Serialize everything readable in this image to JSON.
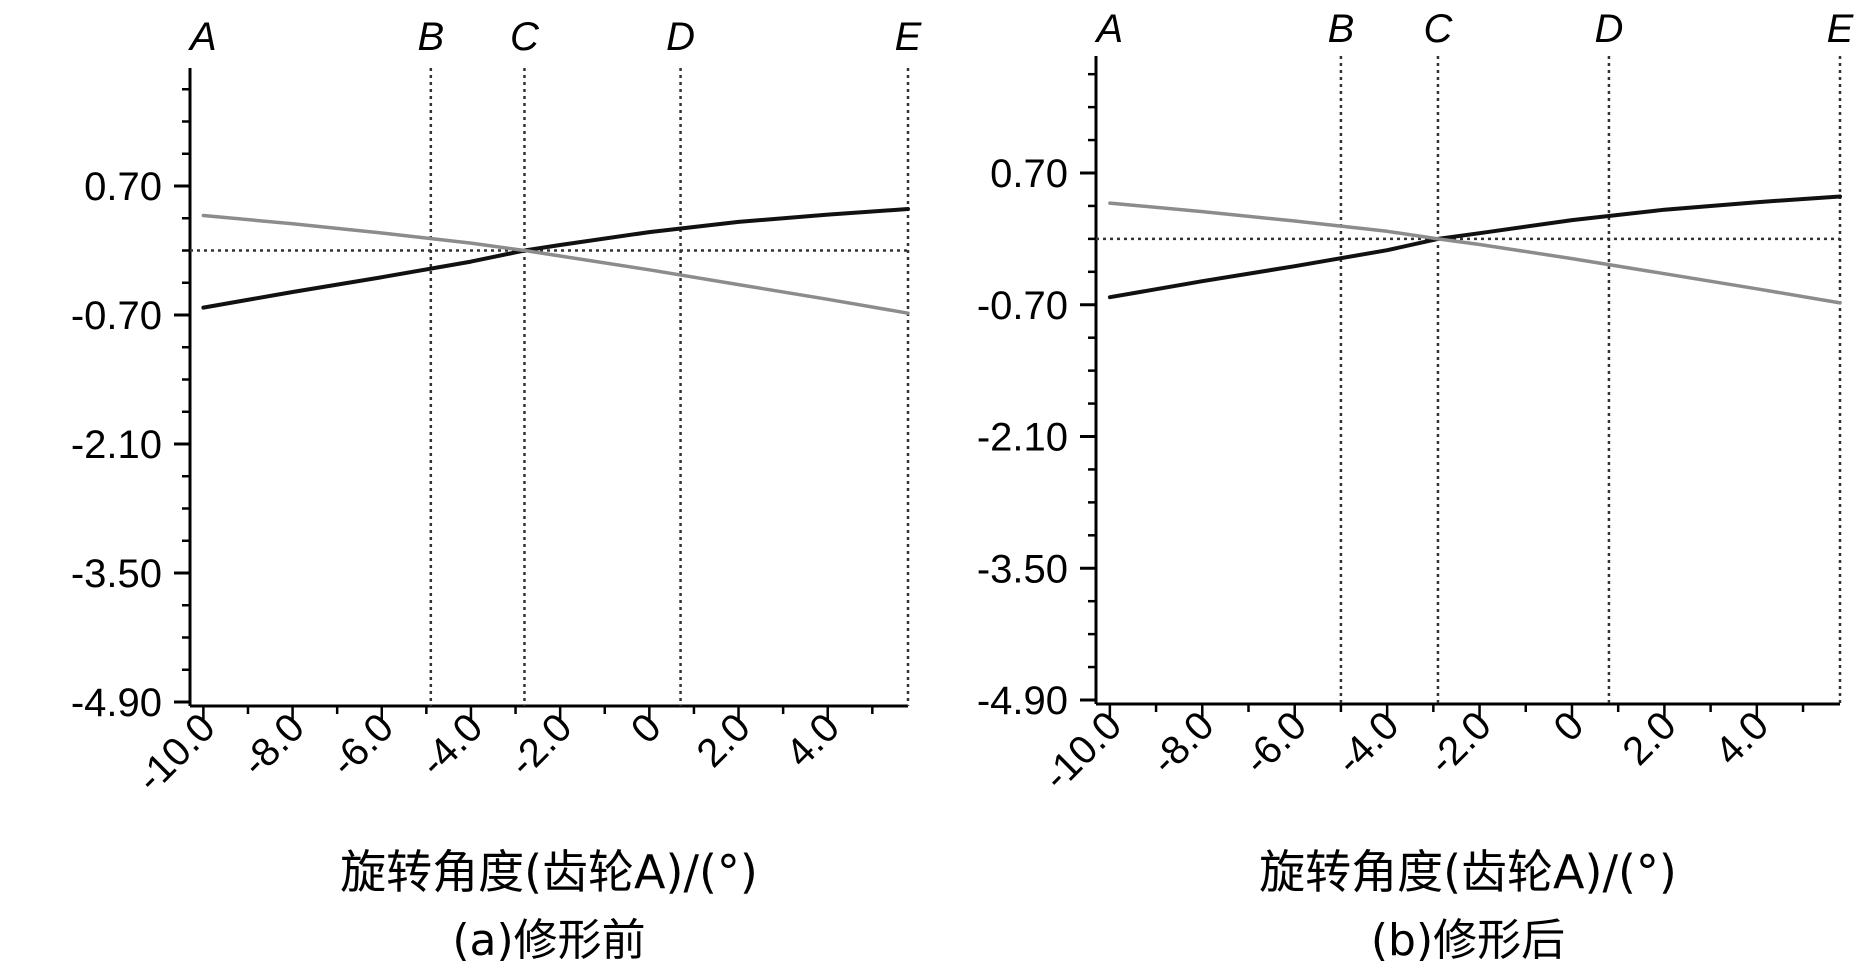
{
  "chart_data": [
    {
      "type": "line",
      "caption": "(a)修形前",
      "xlabel": "旋转角度(齿轮A)/(°)",
      "ylabel": "",
      "xlim": [
        -10.3,
        5.8
      ],
      "ylim": [
        -4.9,
        2.1
      ],
      "x_ticks": [
        -10.0,
        -8.0,
        -6.0,
        -4.0,
        -2.0,
        0,
        2.0,
        4.0
      ],
      "x_tick_labels": [
        "-10.0",
        "-8.0",
        "-6.0",
        "-4.0",
        "-2.0",
        "0",
        "2.0",
        "4.0"
      ],
      "y_ticks": [
        0.7,
        -0.7,
        -2.1,
        -3.5,
        -4.9
      ],
      "y_tick_labels": [
        "0.70",
        "-0.70",
        "-2.10",
        "-3.50",
        "-4.90"
      ],
      "reference_lines": [
        {
          "label": "A",
          "x": -10.0
        },
        {
          "label": "B",
          "x": -4.9
        },
        {
          "label": "C",
          "x": -2.8
        },
        {
          "label": "D",
          "x": 0.7
        },
        {
          "label": "E",
          "x": 5.8
        }
      ],
      "horizontal_reference_y": 0.0,
      "series": [
        {
          "color": "#111111",
          "x": [
            -10.0,
            -8.0,
            -6.0,
            -4.0,
            -2.8,
            -2.0,
            0.0,
            2.0,
            4.0,
            5.8
          ],
          "y": [
            -0.62,
            -0.45,
            -0.29,
            -0.12,
            0.0,
            0.06,
            0.2,
            0.31,
            0.39,
            0.45
          ]
        },
        {
          "color": "#8c8c8c",
          "x": [
            -10.0,
            -8.0,
            -6.0,
            -4.0,
            -2.8,
            -2.0,
            0.0,
            2.0,
            4.0,
            5.8
          ],
          "y": [
            0.38,
            0.29,
            0.19,
            0.08,
            0.0,
            -0.06,
            -0.21,
            -0.37,
            -0.53,
            -0.68
          ]
        }
      ]
    },
    {
      "type": "line",
      "caption": "(b)修形后",
      "xlabel": "旋转角度(齿轮A)/(°)",
      "ylabel": "",
      "xlim": [
        -10.3,
        5.8
      ],
      "ylim": [
        -4.9,
        2.1
      ],
      "x_ticks": [
        -10.0,
        -8.0,
        -6.0,
        -4.0,
        -2.0,
        0,
        2.0,
        4.0
      ],
      "x_tick_labels": [
        "-10.0",
        "-8.0",
        "-6.0",
        "-4.0",
        "-2.0",
        "0",
        "2.0",
        "4.0"
      ],
      "y_ticks": [
        0.7,
        -0.7,
        -2.1,
        -3.5,
        -4.9
      ],
      "y_tick_labels": [
        "0.70",
        "-0.70",
        "-2.10",
        "-3.50",
        "-4.90"
      ],
      "reference_lines": [
        {
          "label": "A",
          "x": -10.0
        },
        {
          "label": "B",
          "x": -5.0
        },
        {
          "label": "C",
          "x": -2.9
        },
        {
          "label": "D",
          "x": 0.8
        },
        {
          "label": "E",
          "x": 5.8
        }
      ],
      "horizontal_reference_y": 0.0,
      "series": [
        {
          "color": "#111111",
          "x": [
            -10.0,
            -8.0,
            -6.0,
            -4.0,
            -2.9,
            -2.0,
            0.0,
            2.0,
            4.0,
            5.8
          ],
          "y": [
            -0.62,
            -0.45,
            -0.29,
            -0.12,
            0.0,
            0.06,
            0.2,
            0.31,
            0.39,
            0.45
          ]
        },
        {
          "color": "#8c8c8c",
          "x": [
            -10.0,
            -8.0,
            -6.0,
            -4.0,
            -2.9,
            -2.0,
            0.0,
            2.0,
            4.0,
            5.8
          ],
          "y": [
            0.38,
            0.29,
            0.19,
            0.08,
            0.0,
            -0.06,
            -0.21,
            -0.37,
            -0.53,
            -0.68
          ]
        }
      ]
    }
  ]
}
